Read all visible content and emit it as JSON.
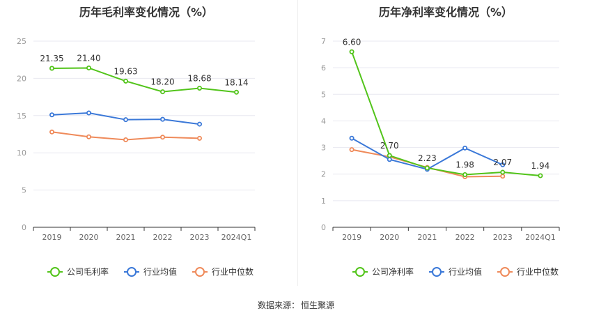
{
  "colors": {
    "company": "#52c41a",
    "industry_avg": "#3a78d8",
    "industry_median": "#ef8a5a",
    "grid": "#e8e8f0",
    "axis": "#999999"
  },
  "chart_data": [
    {
      "type": "line",
      "title": "历年毛利率变化情况（%）",
      "categories": [
        "2019",
        "2020",
        "2021",
        "2022",
        "2023",
        "2024Q1"
      ],
      "ylim": [
        0,
        25
      ],
      "yticks": [
        0,
        5,
        10,
        15,
        20,
        25
      ],
      "series": [
        {
          "name": "公司毛利率",
          "values": [
            21.35,
            21.4,
            19.63,
            18.2,
            18.68,
            18.14
          ],
          "labels": [
            "21.35",
            "21.40",
            "19.63",
            "18.20",
            "18.68",
            "18.14"
          ]
        },
        {
          "name": "行业均值",
          "values": [
            15.1,
            15.35,
            14.45,
            14.5,
            13.85,
            null
          ]
        },
        {
          "name": "行业中位数",
          "values": [
            12.8,
            12.15,
            11.75,
            12.1,
            11.95,
            null
          ]
        }
      ],
      "legend": "bottom",
      "grid": true
    },
    {
      "type": "line",
      "title": "历年净利率变化情况（%）",
      "categories": [
        "2019",
        "2020",
        "2021",
        "2022",
        "2023",
        "2024Q1"
      ],
      "ylim": [
        0,
        7
      ],
      "yticks": [
        0,
        1,
        2,
        3,
        4,
        5,
        6,
        7
      ],
      "series": [
        {
          "name": "公司净利率",
          "values": [
            6.6,
            2.7,
            2.23,
            1.98,
            2.07,
            1.94
          ],
          "labels": [
            "6.60",
            "2.70",
            "2.23",
            "1.98",
            "2.07",
            "1.94"
          ]
        },
        {
          "name": "行业均值",
          "values": [
            3.35,
            2.55,
            2.18,
            2.98,
            2.35,
            null
          ]
        },
        {
          "name": "行业中位数",
          "values": [
            2.92,
            2.65,
            2.25,
            1.9,
            1.92,
            null
          ]
        }
      ],
      "legend": "bottom",
      "grid": true
    }
  ],
  "source": {
    "label": "数据来源：",
    "value": "恒生聚源"
  }
}
